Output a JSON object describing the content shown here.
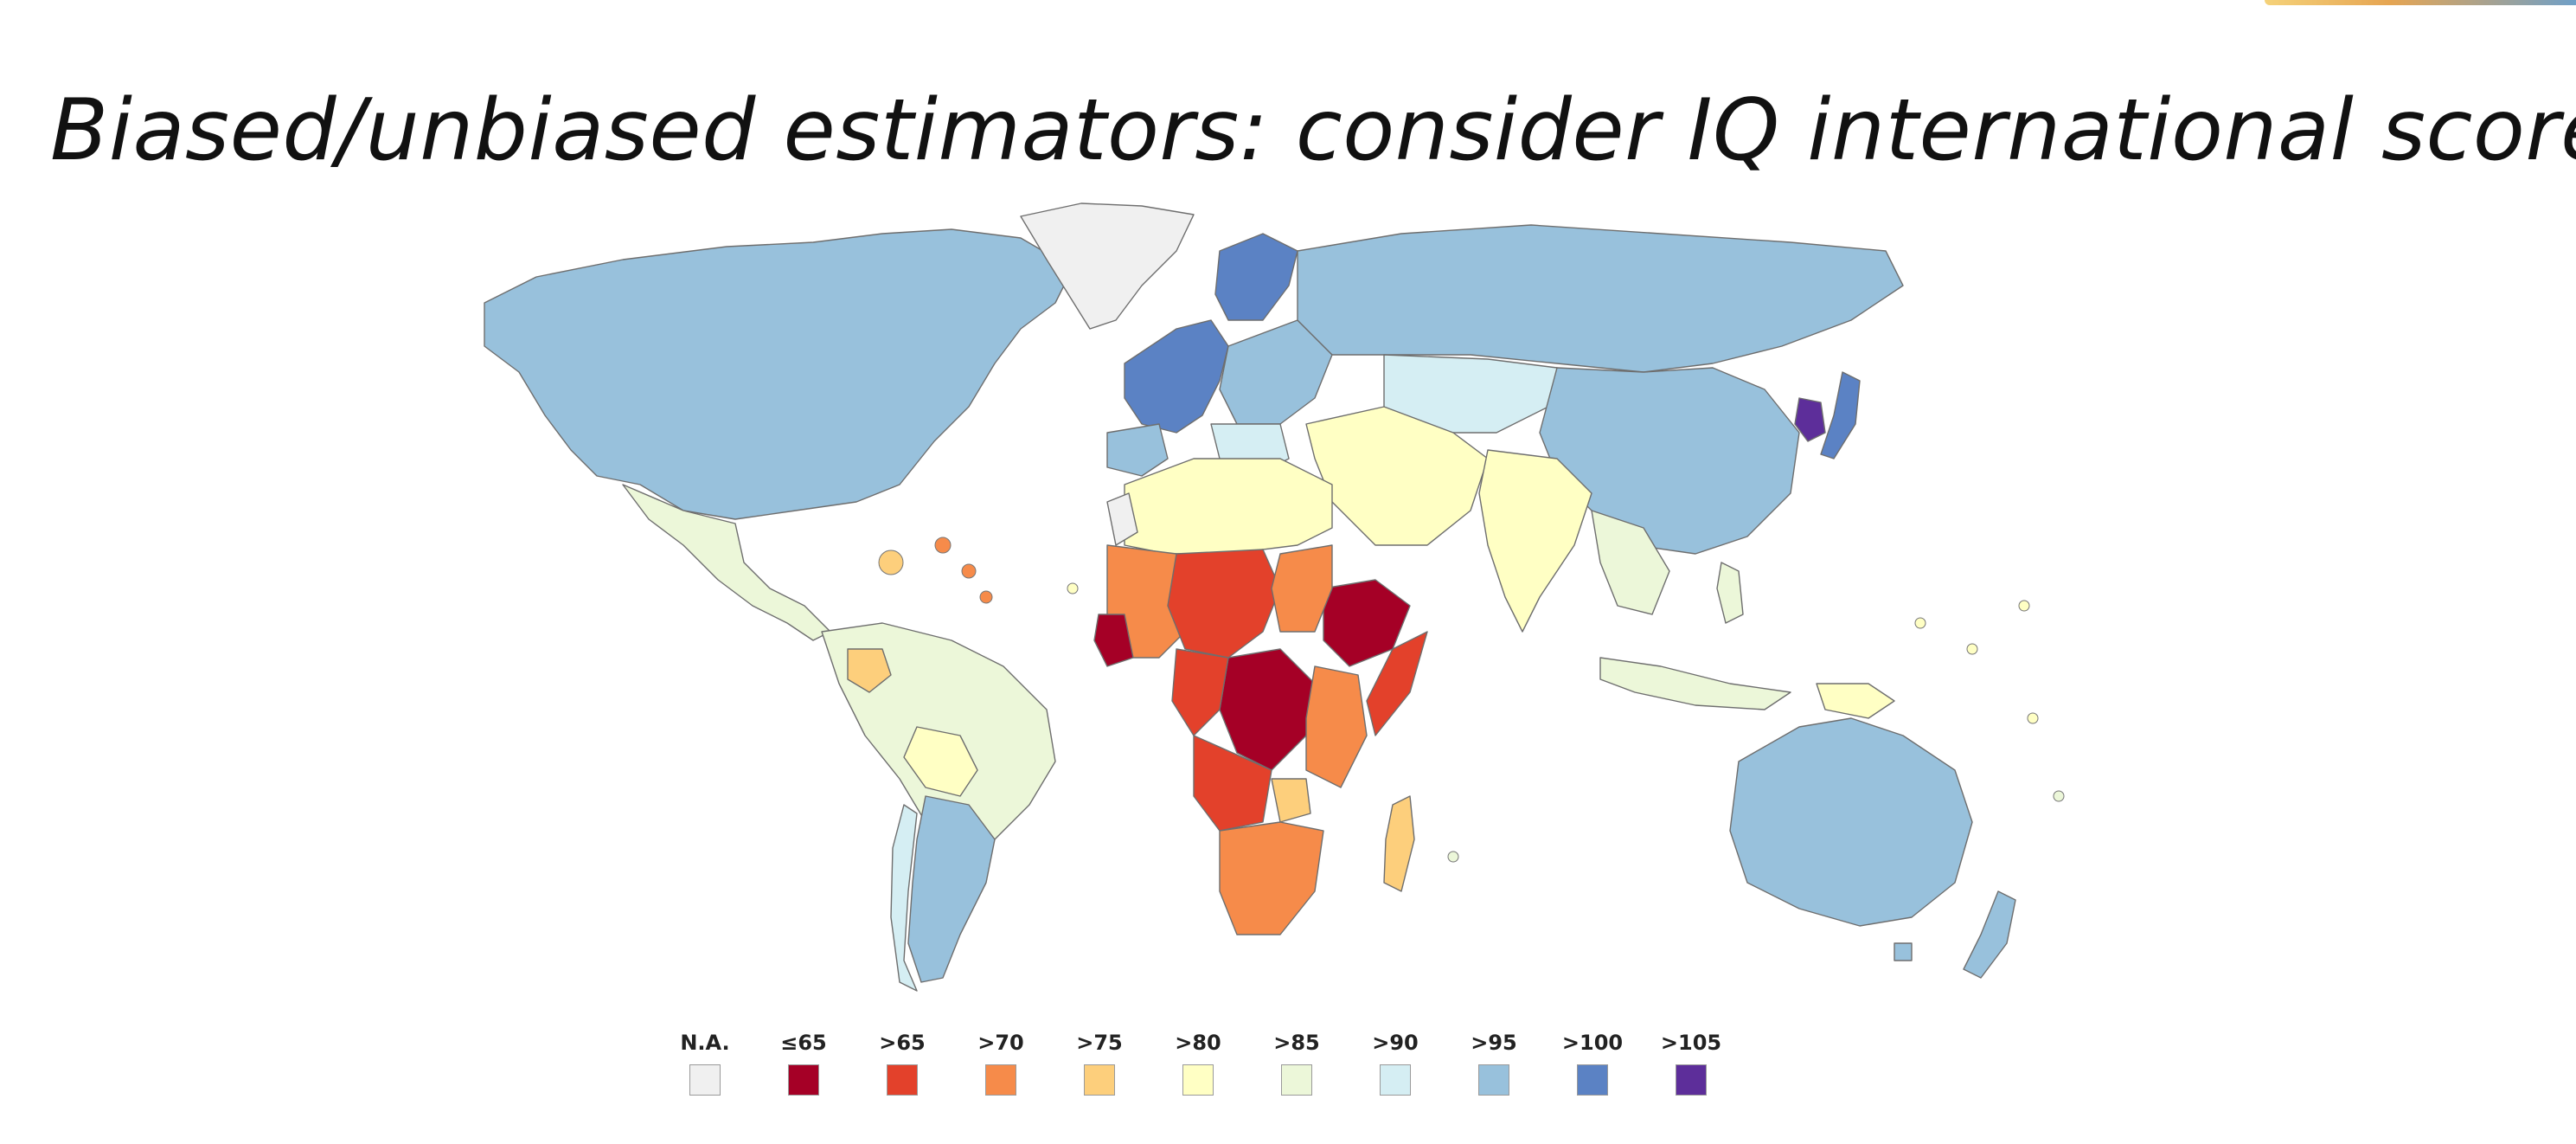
{
  "slide": {
    "title": "Biased/unbiased estimators: consider IQ international scores"
  },
  "map": {
    "type": "choropleth world map",
    "colors": {
      "na": "#f0f0f0",
      "le65": "#a50026",
      "gt65": "#e3412b",
      "gt70": "#f68b4a",
      "gt75": "#fdcf7c",
      "gt80": "#ffffc4",
      "gt85": "#ecf7d9",
      "gt90": "#d5eef3",
      "gt95": "#98c1dc",
      "gt100": "#5b82c4",
      "gt105": "#5d2e9a"
    }
  },
  "legend": {
    "items": [
      {
        "label": "N.A.",
        "color": "#f0f0f0"
      },
      {
        "label": "≤65",
        "color": "#a50026"
      },
      {
        "label": ">65",
        "color": "#e3412b"
      },
      {
        "label": ">70",
        "color": "#f68b4a"
      },
      {
        "label": ">75",
        "color": "#fdcf7c"
      },
      {
        "label": ">80",
        "color": "#ffffc4"
      },
      {
        "label": ">85",
        "color": "#ecf7d9"
      },
      {
        "label": ">90",
        "color": "#d5eef3"
      },
      {
        "label": ">95",
        "color": "#98c1dc"
      },
      {
        "label": ">100",
        "color": "#5b82c4"
      },
      {
        "label": ">105",
        "color": "#5d2e9a"
      }
    ]
  }
}
